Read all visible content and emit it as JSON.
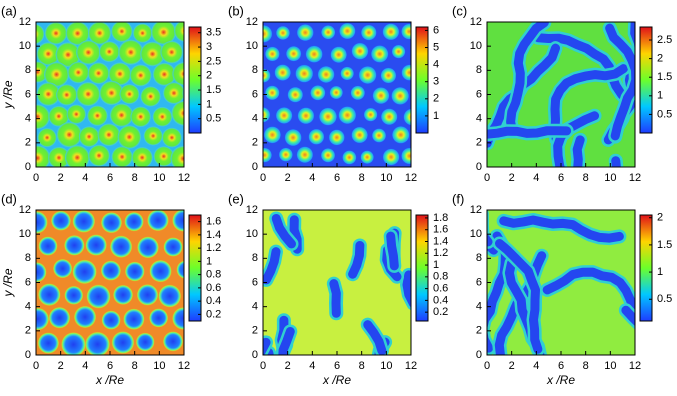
{
  "chart_data": [
    {
      "type": "heatmap",
      "panel_label": "(a)",
      "y_label": "y /Re",
      "xlim": [
        0,
        12
      ],
      "ylim": [
        0,
        12
      ],
      "xticks": [
        0,
        2,
        4,
        6,
        8,
        10,
        12
      ],
      "yticks": [
        0,
        2,
        4,
        6,
        8,
        10,
        12
      ],
      "clim": [
        0,
        3.7
      ],
      "cticks": [
        0.5,
        1,
        1.5,
        2,
        2.5,
        3,
        3.5
      ]
    },
    {
      "type": "heatmap",
      "panel_label": "(b)",
      "xlim": [
        0,
        12
      ],
      "ylim": [
        0,
        12
      ],
      "xticks": [
        0,
        2,
        4,
        6,
        8,
        10,
        12
      ],
      "yticks": [
        0,
        2,
        4,
        6,
        8,
        10,
        12
      ],
      "clim": [
        0,
        6.2
      ],
      "cticks": [
        1,
        2,
        3,
        4,
        5,
        6
      ]
    },
    {
      "type": "heatmap",
      "panel_label": "(c)",
      "xlim": [
        0,
        12
      ],
      "ylim": [
        0,
        12
      ],
      "xticks": [
        0,
        2,
        4,
        6,
        8,
        10,
        12
      ],
      "yticks": [
        0,
        2,
        4,
        6,
        8,
        10,
        12
      ],
      "clim": [
        0,
        2.85
      ],
      "cticks": [
        0.5,
        1,
        1.5,
        2,
        2.5
      ]
    },
    {
      "type": "heatmap",
      "panel_label": "(d)",
      "x_label": "x /Re",
      "y_label": "y /Re",
      "xlim": [
        0,
        12
      ],
      "ylim": [
        0,
        12
      ],
      "xticks": [
        0,
        2,
        4,
        6,
        8,
        10,
        12
      ],
      "yticks": [
        0,
        2,
        4,
        6,
        8,
        10,
        12
      ],
      "clim": [
        0.1,
        1.7
      ],
      "cticks": [
        0.2,
        0.4,
        0.6,
        0.8,
        1,
        1.2,
        1.4,
        1.6
      ]
    },
    {
      "type": "heatmap",
      "panel_label": "(e)",
      "x_label": "x /Re",
      "xlim": [
        0,
        12
      ],
      "ylim": [
        0,
        12
      ],
      "xticks": [
        0,
        2,
        4,
        6,
        8,
        10,
        12
      ],
      "yticks": [
        0,
        2,
        4,
        6,
        8,
        10,
        12
      ],
      "clim": [
        0.05,
        1.85
      ],
      "cticks": [
        0.2,
        0.4,
        0.6,
        0.8,
        1,
        1.2,
        1.4,
        1.6,
        1.8
      ]
    },
    {
      "type": "heatmap",
      "panel_label": "(f)",
      "x_label": "x /Re",
      "xlim": [
        0,
        12
      ],
      "ylim": [
        0,
        12
      ],
      "xticks": [
        0,
        2,
        4,
        6,
        8,
        10,
        12
      ],
      "yticks": [
        0,
        2,
        4,
        6,
        8,
        10,
        12
      ],
      "clim": [
        0.1,
        2.05
      ],
      "cticks": [
        0.5,
        1,
        1.5,
        2
      ]
    }
  ]
}
